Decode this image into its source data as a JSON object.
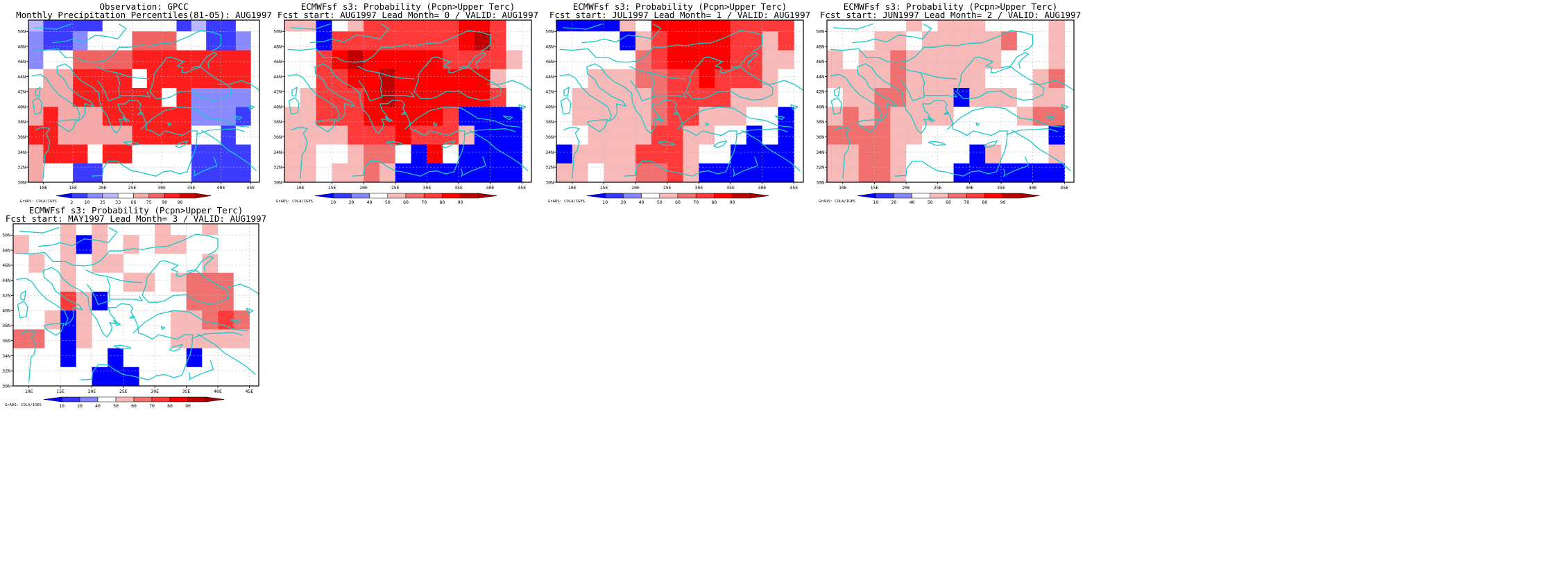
{
  "palette": {
    "obs_colors": [
      "#0000ff",
      "#3c3cff",
      "#8a8aff",
      "#b8b8ff",
      "#ffffff",
      "#f5a9a9",
      "#f06464",
      "#ff1e1e",
      "#d40000",
      "#a00000"
    ],
    "prob_colors": [
      "#0000ff",
      "#3737ff",
      "#8585ff",
      "#ffffff",
      "#f8b9b9",
      "#f07070",
      "#ff3a3a",
      "#ff0000",
      "#c00000",
      "#a00000"
    ],
    "coast_color": "#19c8c8",
    "grid_color": "#bbbbbb"
  },
  "grads_credit": "GrADS: COLA/IGES",
  "chart_data": [
    {
      "type": "heatmap",
      "title": "Observation: GPCC",
      "subtitle": "Monthly Precipitation Percentiles(81-05): AUG1997",
      "x_ticks": [
        "10E",
        "15E",
        "20E",
        "25E",
        "30E",
        "35E",
        "40E",
        "45E"
      ],
      "y_ticks": [
        "30N",
        "32N",
        "34N",
        "36N",
        "38N",
        "40N",
        "42N",
        "44N",
        "46N",
        "48N",
        "50N"
      ],
      "xlim": [
        7.5,
        46.5
      ],
      "ylim": [
        30,
        51.5
      ],
      "cell_size_deg": 2.5,
      "colorbar_labels": [
        "2",
        "10",
        "25",
        "33",
        "66",
        "75",
        "90",
        "98"
      ],
      "color_thresholds": [
        2,
        10,
        25,
        33,
        66,
        75,
        90,
        98
      ],
      "values_rows_north_to_south": [
        [
          30,
          8,
          8,
          8,
          8,
          50,
          50,
          50,
          50,
          50,
          8,
          30,
          8,
          8,
          50
        ],
        [
          20,
          8,
          8,
          20,
          50,
          50,
          50,
          85,
          85,
          85,
          50,
          50,
          8,
          8,
          20
        ],
        [
          20,
          50,
          50,
          85,
          85,
          85,
          85,
          95,
          95,
          95,
          95,
          95,
          95,
          95,
          95
        ],
        [
          50,
          70,
          70,
          95,
          95,
          95,
          95,
          50,
          95,
          95,
          95,
          95,
          95,
          95,
          95
        ],
        [
          70,
          70,
          70,
          95,
          95,
          95,
          95,
          95,
          95,
          50,
          95,
          20,
          20,
          20,
          20
        ],
        [
          70,
          95,
          70,
          70,
          70,
          95,
          95,
          95,
          95,
          95,
          95,
          20,
          20,
          20,
          8
        ],
        [
          95,
          95,
          70,
          70,
          70,
          70,
          70,
          95,
          95,
          95,
          95,
          50,
          50,
          8,
          50
        ],
        [
          70,
          95,
          95,
          95,
          50,
          95,
          95,
          50,
          50,
          50,
          50,
          8,
          8,
          8,
          8
        ],
        [
          70,
          50,
          50,
          8,
          8,
          50,
          50,
          50,
          50,
          50,
          50,
          8,
          8,
          8,
          8
        ]
      ]
    },
    {
      "type": "heatmap",
      "title": "ECMWFsf s3: Probability (Pcpn>Upper Terc)",
      "subtitle": "Fcst start: AUG1997  Lead Month= 0 / VALID: AUG1997",
      "x_ticks": [
        "10E",
        "15E",
        "20E",
        "25E",
        "30E",
        "35E",
        "40E",
        "45E"
      ],
      "y_ticks": [
        "30N",
        "32N",
        "34N",
        "36N",
        "38N",
        "40N",
        "42N",
        "44N",
        "46N",
        "48N",
        "50N"
      ],
      "xlim": [
        7.5,
        46.5
      ],
      "ylim": [
        30,
        51.5
      ],
      "cell_size_deg": 2.5,
      "colorbar_labels": [
        "10",
        "20",
        "40",
        "50",
        "60",
        "70",
        "80",
        "90"
      ],
      "color_thresholds": [
        10,
        20,
        40,
        50,
        60,
        70,
        80,
        90
      ],
      "values_rows_north_to_south": [
        [
          50,
          50,
          5,
          45,
          55,
          75,
          75,
          75,
          75,
          75,
          75,
          85,
          85,
          75,
          45
        ],
        [
          45,
          45,
          5,
          75,
          75,
          75,
          75,
          75,
          75,
          75,
          75,
          85,
          95,
          75,
          45
        ],
        [
          45,
          45,
          75,
          85,
          95,
          85,
          85,
          85,
          85,
          85,
          75,
          75,
          75,
          75,
          55
        ],
        [
          45,
          45,
          75,
          75,
          85,
          85,
          95,
          85,
          85,
          85,
          85,
          85,
          85,
          55,
          45
        ],
        [
          45,
          55,
          75,
          75,
          75,
          85,
          95,
          85,
          85,
          85,
          85,
          85,
          85,
          75,
          45
        ],
        [
          55,
          55,
          75,
          75,
          75,
          85,
          85,
          85,
          85,
          85,
          75,
          5,
          5,
          5,
          5
        ],
        [
          55,
          55,
          55,
          55,
          75,
          75,
          75,
          85,
          75,
          75,
          75,
          55,
          5,
          5,
          5
        ],
        [
          55,
          55,
          45,
          45,
          55,
          65,
          65,
          45,
          5,
          85,
          45,
          5,
          5,
          5,
          5
        ],
        [
          55,
          55,
          45,
          55,
          55,
          65,
          55,
          5,
          5,
          5,
          5,
          5,
          5,
          5,
          5
        ]
      ]
    },
    {
      "type": "heatmap",
      "title": "ECMWFsf s3: Probability (Pcpn>Upper Terc)",
      "subtitle": "Fcst start: JUL1997  Lead Month= 1 / VALID: AUG1997",
      "x_ticks": [
        "10E",
        "15E",
        "20E",
        "25E",
        "30E",
        "35E",
        "40E",
        "45E"
      ],
      "y_ticks": [
        "30N",
        "32N",
        "34N",
        "36N",
        "38N",
        "40N",
        "42N",
        "44N",
        "46N",
        "48N",
        "50N"
      ],
      "xlim": [
        7.5,
        46.5
      ],
      "ylim": [
        30,
        51.5
      ],
      "cell_size_deg": 2.5,
      "colorbar_labels": [
        "10",
        "20",
        "40",
        "50",
        "60",
        "70",
        "80",
        "90"
      ],
      "color_thresholds": [
        10,
        20,
        40,
        50,
        60,
        70,
        80,
        90
      ],
      "values_rows_north_to_south": [
        [
          5,
          5,
          5,
          5,
          55,
          45,
          85,
          85,
          85,
          85,
          85,
          75,
          75,
          75,
          75
        ],
        [
          45,
          45,
          45,
          45,
          5,
          55,
          75,
          85,
          85,
          85,
          85,
          75,
          75,
          55,
          75
        ],
        [
          45,
          45,
          45,
          45,
          45,
          65,
          75,
          85,
          85,
          85,
          85,
          75,
          75,
          55,
          55
        ],
        [
          45,
          45,
          55,
          55,
          55,
          65,
          65,
          75,
          75,
          85,
          75,
          75,
          75,
          55,
          45
        ],
        [
          45,
          55,
          55,
          55,
          55,
          55,
          65,
          75,
          75,
          75,
          75,
          55,
          55,
          55,
          45
        ],
        [
          45,
          55,
          55,
          55,
          55,
          55,
          65,
          75,
          75,
          55,
          55,
          55,
          45,
          45,
          5
        ],
        [
          45,
          45,
          55,
          55,
          55,
          55,
          75,
          75,
          55,
          55,
          45,
          45,
          5,
          45,
          5
        ],
        [
          5,
          55,
          55,
          55,
          55,
          75,
          75,
          75,
          55,
          45,
          45,
          5,
          5,
          5,
          5
        ],
        [
          55,
          55,
          45,
          55,
          55,
          65,
          65,
          75,
          55,
          5,
          5,
          5,
          5,
          5,
          5
        ]
      ]
    },
    {
      "type": "heatmap",
      "title": "ECMWFsf s3: Probability (Pcpn>Upper Terc)",
      "subtitle": "Fcst start: JUN1997  Lead Month= 2 / VALID: AUG1997",
      "x_ticks": [
        "10E",
        "15E",
        "20E",
        "25E",
        "30E",
        "35E",
        "40E",
        "45E"
      ],
      "y_ticks": [
        "30N",
        "32N",
        "34N",
        "36N",
        "38N",
        "40N",
        "42N",
        "44N",
        "46N",
        "48N",
        "50N"
      ],
      "xlim": [
        7.5,
        46.5
      ],
      "ylim": [
        30,
        51.5
      ],
      "cell_size_deg": 2.5,
      "colorbar_labels": [
        "10",
        "20",
        "40",
        "50",
        "60",
        "70",
        "80",
        "90"
      ],
      "color_thresholds": [
        10,
        20,
        40,
        50,
        60,
        70,
        80,
        90
      ],
      "values_rows_north_to_south": [
        [
          45,
          45,
          45,
          45,
          45,
          55,
          45,
          55,
          55,
          55,
          45,
          45,
          45,
          45,
          55
        ],
        [
          45,
          45,
          45,
          55,
          55,
          45,
          55,
          55,
          55,
          55,
          55,
          65,
          45,
          45,
          55
        ],
        [
          55,
          45,
          55,
          55,
          65,
          55,
          55,
          55,
          55,
          55,
          55,
          45,
          45,
          45,
          55
        ],
        [
          55,
          55,
          55,
          55,
          65,
          55,
          55,
          55,
          55,
          55,
          45,
          45,
          45,
          55,
          65
        ],
        [
          45,
          55,
          55,
          65,
          65,
          55,
          55,
          55,
          5,
          55,
          55,
          55,
          45,
          55,
          55
        ],
        [
          55,
          65,
          55,
          65,
          55,
          55,
          55,
          55,
          45,
          45,
          45,
          45,
          55,
          65,
          65
        ],
        [
          65,
          65,
          65,
          65,
          55,
          55,
          45,
          45,
          45,
          45,
          45,
          45,
          45,
          45,
          5
        ],
        [
          55,
          55,
          65,
          65,
          55,
          45,
          45,
          45,
          45,
          5,
          55,
          45,
          45,
          45,
          55
        ],
        [
          55,
          55,
          65,
          65,
          55,
          45,
          45,
          45,
          5,
          5,
          5,
          5,
          5,
          5,
          5
        ]
      ]
    },
    {
      "type": "heatmap",
      "title": "ECMWFsf s3: Probability (Pcpn>Upper Terc)",
      "subtitle": "Fcst start: MAY1997  Lead Month= 3 / VALID: AUG1997",
      "x_ticks": [
        "10E",
        "15E",
        "20E",
        "25E",
        "30E",
        "35E",
        "40E",
        "45E"
      ],
      "y_ticks": [
        "30N",
        "32N",
        "34N",
        "36N",
        "38N",
        "40N",
        "42N",
        "44N",
        "46N",
        "48N",
        "50N"
      ],
      "xlim": [
        7.5,
        46.5
      ],
      "ylim": [
        30,
        51.5
      ],
      "cell_size_deg": 2.5,
      "colorbar_labels": [
        "10",
        "20",
        "40",
        "50",
        "60",
        "70",
        "80",
        "90"
      ],
      "color_thresholds": [
        10,
        20,
        40,
        50,
        60,
        70,
        80,
        90
      ],
      "values_rows_north_to_south": [
        [
          45,
          45,
          45,
          55,
          45,
          55,
          45,
          45,
          45,
          55,
          45,
          45,
          55,
          45,
          45
        ],
        [
          55,
          45,
          45,
          55,
          5,
          55,
          45,
          55,
          45,
          55,
          55,
          45,
          45,
          45,
          45
        ],
        [
          45,
          55,
          45,
          55,
          45,
          55,
          55,
          45,
          45,
          45,
          45,
          45,
          55,
          45,
          45
        ],
        [
          45,
          45,
          45,
          55,
          45,
          45,
          45,
          55,
          55,
          45,
          55,
          65,
          65,
          65,
          45
        ],
        [
          45,
          45,
          45,
          75,
          55,
          5,
          45,
          45,
          45,
          45,
          45,
          65,
          65,
          65,
          45
        ],
        [
          45,
          45,
          55,
          5,
          55,
          45,
          45,
          45,
          45,
          45,
          55,
          55,
          65,
          75,
          65
        ],
        [
          65,
          65,
          45,
          5,
          55,
          45,
          45,
          45,
          45,
          45,
          55,
          55,
          55,
          55,
          55
        ],
        [
          45,
          45,
          45,
          5,
          45,
          45,
          5,
          45,
          45,
          45,
          45,
          5,
          45,
          45,
          45
        ],
        [
          45,
          45,
          45,
          45,
          45,
          5,
          5,
          5,
          45,
          45,
          45,
          45,
          45,
          45,
          45
        ]
      ]
    }
  ]
}
